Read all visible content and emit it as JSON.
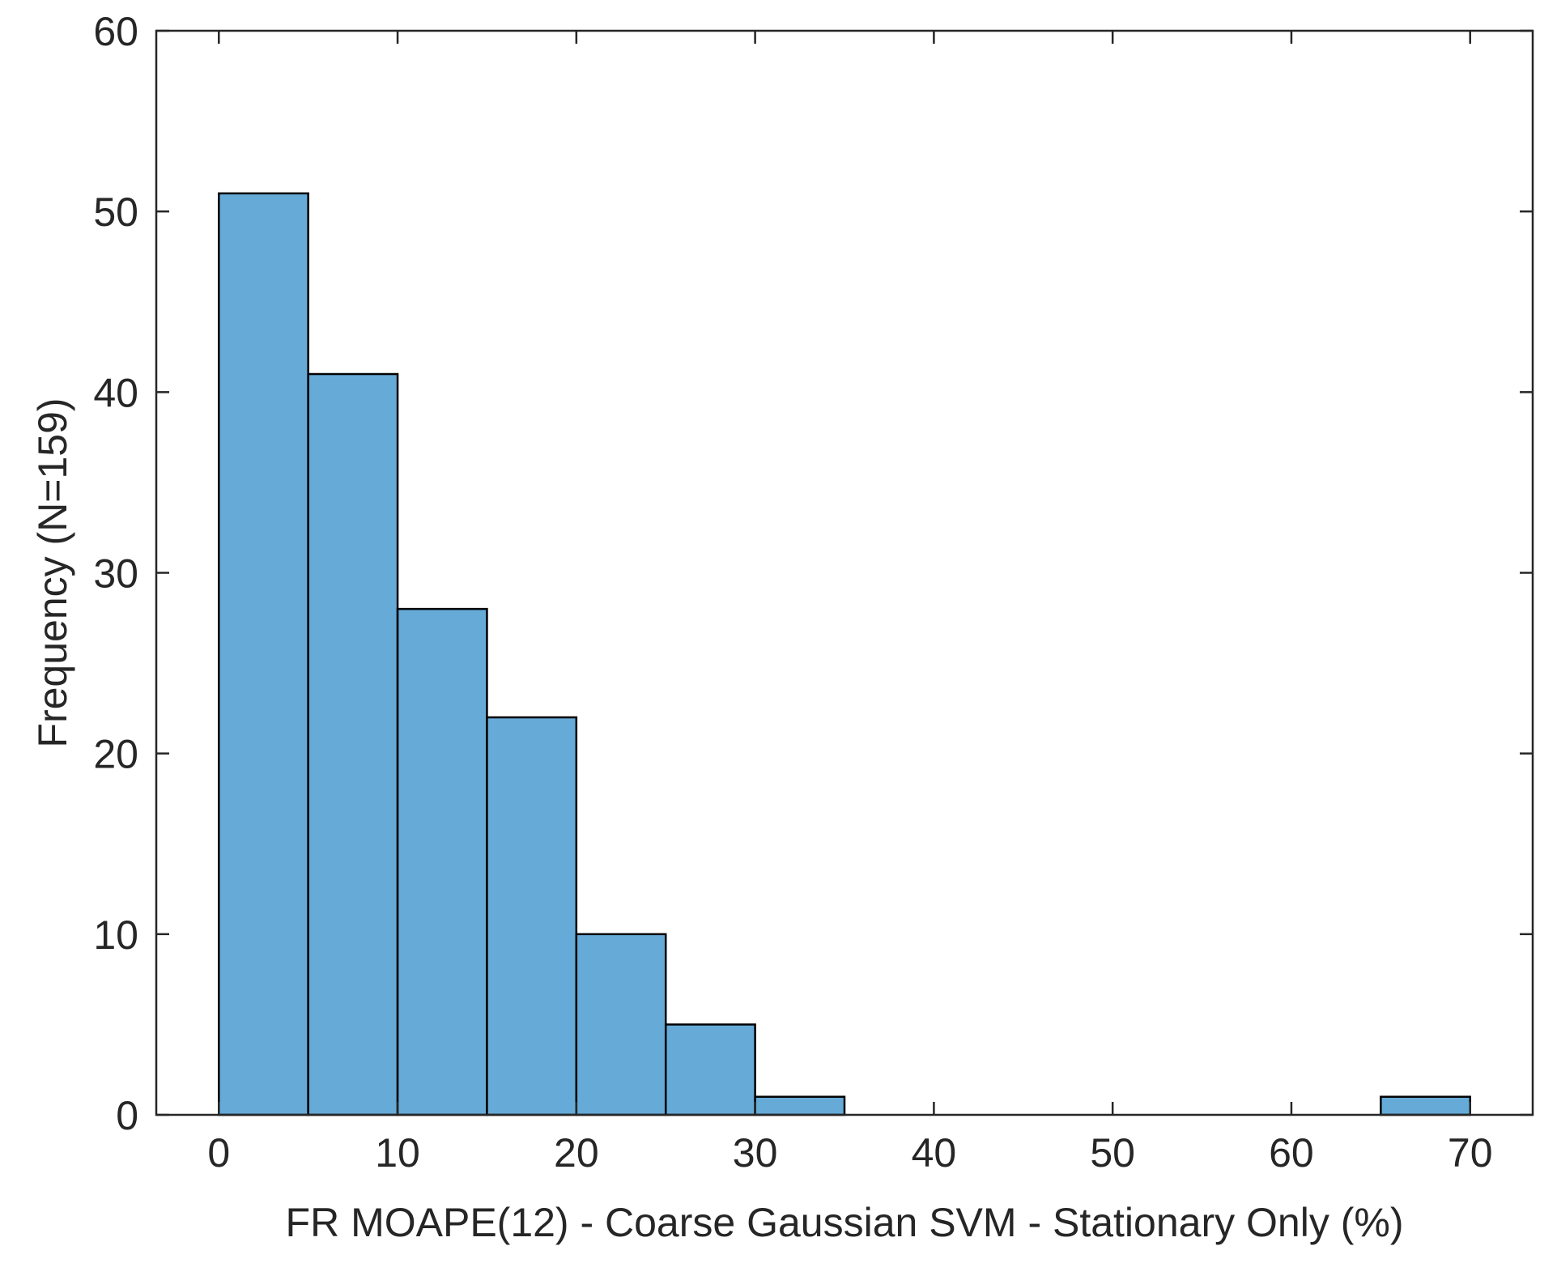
{
  "chart_data": {
    "type": "bar",
    "subtype": "histogram",
    "bin_edges": [
      0,
      5,
      10,
      15,
      20,
      25,
      30,
      35,
      40,
      45,
      50,
      55,
      60,
      65,
      70
    ],
    "values": [
      51,
      41,
      28,
      22,
      10,
      5,
      1,
      0,
      0,
      0,
      0,
      0,
      0,
      1
    ],
    "xlabel": "FR MOAPE(12) - Coarse Gaussian SVM - Stationary Only (%)",
    "ylabel": "Frequency (N=159)",
    "xlim": [
      -3.5,
      73.5
    ],
    "ylim": [
      0,
      60
    ],
    "xticks": [
      0,
      10,
      20,
      30,
      40,
      50,
      60,
      70
    ],
    "yticks": [
      0,
      10,
      20,
      30,
      40,
      50,
      60
    ],
    "bar_color": "#66aad7",
    "edge_color": "#000000",
    "grid": false,
    "legend": "none"
  }
}
